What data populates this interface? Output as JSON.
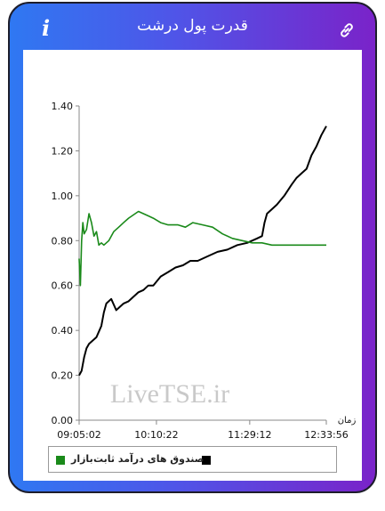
{
  "header": {
    "title": "قدرت پول درشت",
    "info_icon": "i",
    "link_icon": "link-icon"
  },
  "watermark": "LiveTSE.ir",
  "legend": {
    "items": [
      {
        "label": "صندوق های درآمد ثابت",
        "color": "#000000"
      },
      {
        "label": "بازار",
        "color": "#1a8a1a"
      }
    ]
  },
  "chart_data": {
    "type": "line",
    "xlabel": "زمان",
    "ylabel": "",
    "x_ticks": [
      "09:05:02",
      "10:10:22",
      "11:29:12",
      "12:33:56"
    ],
    "ylim": [
      0,
      1.4
    ],
    "y_ticks": [
      "0.00",
      "0.20",
      "0.40",
      "0.60",
      "0.80",
      "1.00",
      "1.20",
      "1.40"
    ],
    "grid": false,
    "series": [
      {
        "name": "صندوق های درآمد ثابت",
        "color": "#000000",
        "x": [
          0,
          0.01,
          0.02,
          0.03,
          0.04,
          0.05,
          0.07,
          0.09,
          0.1,
          0.11,
          0.13,
          0.15,
          0.16,
          0.18,
          0.2,
          0.22,
          0.24,
          0.26,
          0.28,
          0.3,
          0.33,
          0.36,
          0.39,
          0.42,
          0.45,
          0.48,
          0.52,
          0.56,
          0.6,
          0.64,
          0.68,
          0.72,
          0.74,
          0.75,
          0.76,
          0.78,
          0.8,
          0.83,
          0.86,
          0.88,
          0.9,
          0.92,
          0.94,
          0.96,
          0.98,
          1.0
        ],
        "values": [
          0.2,
          0.22,
          0.28,
          0.32,
          0.34,
          0.35,
          0.37,
          0.42,
          0.48,
          0.52,
          0.54,
          0.49,
          0.5,
          0.52,
          0.53,
          0.55,
          0.57,
          0.58,
          0.6,
          0.6,
          0.64,
          0.66,
          0.68,
          0.69,
          0.71,
          0.71,
          0.73,
          0.75,
          0.76,
          0.78,
          0.79,
          0.81,
          0.82,
          0.88,
          0.92,
          0.94,
          0.96,
          1.0,
          1.05,
          1.08,
          1.1,
          1.12,
          1.18,
          1.22,
          1.27,
          1.31
        ]
      },
      {
        "name": "بازار",
        "color": "#1a8a1a",
        "x": [
          0,
          0.005,
          0.01,
          0.015,
          0.02,
          0.03,
          0.04,
          0.05,
          0.06,
          0.07,
          0.08,
          0.09,
          0.1,
          0.12,
          0.14,
          0.16,
          0.18,
          0.2,
          0.24,
          0.28,
          0.3,
          0.33,
          0.36,
          0.4,
          0.43,
          0.46,
          0.5,
          0.54,
          0.58,
          0.62,
          0.66,
          0.7,
          0.74,
          0.78,
          0.82,
          0.86,
          0.9,
          0.95,
          1.0
        ],
        "values": [
          0.72,
          0.6,
          0.8,
          0.88,
          0.83,
          0.85,
          0.92,
          0.88,
          0.82,
          0.84,
          0.78,
          0.79,
          0.78,
          0.8,
          0.84,
          0.86,
          0.88,
          0.9,
          0.93,
          0.91,
          0.9,
          0.88,
          0.87,
          0.87,
          0.86,
          0.88,
          0.87,
          0.86,
          0.83,
          0.81,
          0.8,
          0.79,
          0.79,
          0.78,
          0.78,
          0.78,
          0.78,
          0.78,
          0.78
        ]
      }
    ]
  }
}
